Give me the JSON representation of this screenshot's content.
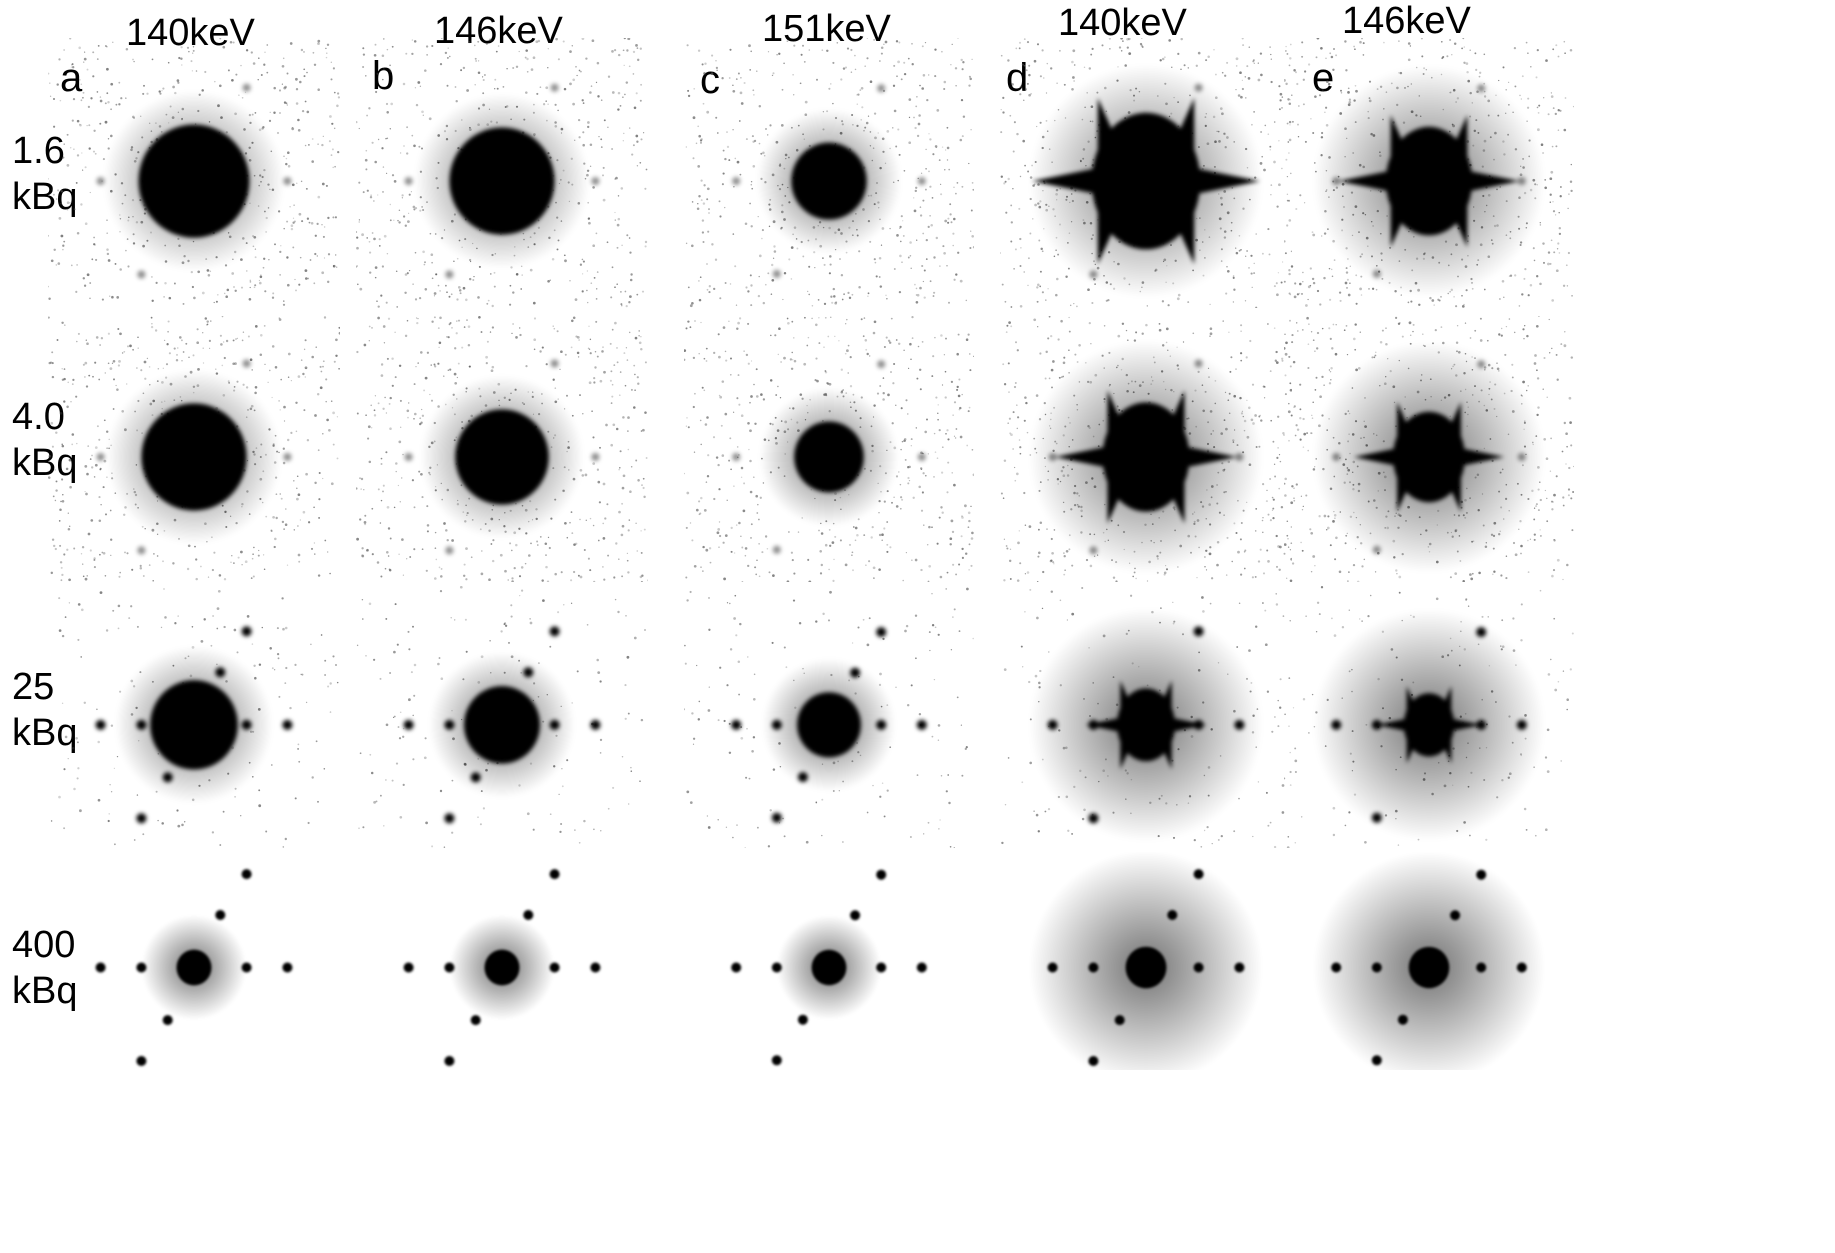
{
  "columns": [
    {
      "energy": "140keV",
      "letter": "a",
      "shape": "round"
    },
    {
      "energy": "146keV",
      "letter": "b",
      "shape": "round"
    },
    {
      "energy": "151keV",
      "letter": "c",
      "shape": "round"
    },
    {
      "energy": "140keV",
      "letter": "d",
      "shape": "star"
    },
    {
      "energy": "146keV",
      "letter": "e",
      "shape": "star"
    }
  ],
  "rows": [
    {
      "activity_value": "1.6",
      "activity_unit": "kBq",
      "noise": "high"
    },
    {
      "activity_value": "4.0",
      "activity_unit": "kBq",
      "noise": "high"
    },
    {
      "activity_value": "25",
      "activity_unit": "kBq",
      "noise": "medium"
    },
    {
      "activity_value": "400",
      "activity_unit": "kBq",
      "noise": "low"
    }
  ],
  "colors": {
    "background": "#ffffff",
    "ink": "#000000"
  }
}
